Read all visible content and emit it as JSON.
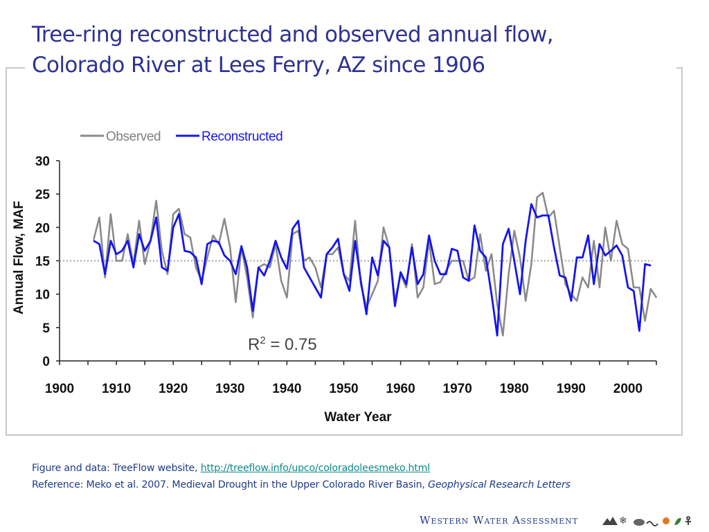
{
  "slide": {
    "title_line1": "Tree-ring reconstructed and observed annual flow,",
    "title_line2": "Colorado River at Lees Ferry, AZ since 1906"
  },
  "footer": {
    "line1_prefix": "Figure and data: TreeFlow website, ",
    "link": "http://treeflow.info/upco/coloradoleesmeko.html",
    "line2_prefix": "Reference: Meko et al.  2007.  Medieval Drought in the Upper Colorado River Basin, ",
    "journal": "Geophysical Research Letters"
  },
  "branding": {
    "text": "Western Water Assessment"
  },
  "colors": {
    "title": "#2e3192",
    "observed": "#8a8a8a",
    "reconstructed": "#1515ee",
    "mean_line": "#a0a0a0"
  },
  "chart_data": {
    "type": "line",
    "xlabel": "Water Year",
    "ylabel": "Annual Flow, MAF",
    "xlim": [
      1900,
      2005
    ],
    "ylim": [
      0,
      30
    ],
    "x_ticks": [
      "1900",
      "1910",
      "1920",
      "1930",
      "1940",
      "1950",
      "1960",
      "1970",
      "1980",
      "1990",
      "2000"
    ],
    "y_ticks": [
      "0",
      "5",
      "10",
      "15",
      "20",
      "25",
      "30"
    ],
    "legend_position": "top-left",
    "mean_line": 15,
    "annotation": {
      "prefix": "R",
      "superscript": "2",
      "suffix": " = 0.75"
    },
    "series": [
      {
        "name": "Observed",
        "x_start": 1906,
        "values": [
          18.2,
          21.5,
          12.5,
          22.0,
          15.0,
          15.0,
          19.0,
          14.5,
          21.0,
          14.5,
          18.0,
          24.0,
          16.5,
          13.0,
          22.0,
          22.8,
          19.0,
          18.5,
          14.0,
          12.0,
          15.5,
          18.8,
          17.5,
          21.3,
          17.0,
          8.8,
          17.0,
          12.5,
          6.5,
          14.0,
          14.5,
          14.0,
          17.5,
          12.0,
          9.5,
          19.0,
          19.5,
          15.0,
          15.5,
          14.0,
          11.0,
          16.0,
          16.0,
          17.0,
          13.0,
          12.0,
          21.0,
          11.5,
          8.0,
          10.0,
          12.0,
          20.0,
          17.0,
          9.0,
          13.0,
          11.0,
          17.5,
          9.5,
          11.0,
          18.0,
          11.5,
          11.8,
          13.5,
          15.0,
          15.0,
          15.0,
          12.0,
          12.5,
          19.0,
          13.5,
          16.0,
          8.5,
          3.8,
          13.0,
          19.5,
          15.5,
          9.0,
          14.5,
          24.5,
          25.2,
          21.5,
          22.5,
          17.0,
          11.5,
          10.0,
          9.0,
          12.5,
          11.0,
          18.0,
          11.0,
          20.0,
          15.0,
          21.0,
          17.5,
          16.8,
          11.0,
          11.0,
          6.0,
          10.8,
          9.5
        ]
      },
      {
        "name": "Reconstructed",
        "x_start": 1906,
        "values": [
          18.0,
          17.5,
          13.0,
          18.0,
          16.0,
          16.5,
          18.0,
          14.0,
          19.0,
          16.5,
          18.0,
          21.5,
          14.0,
          13.5,
          20.0,
          22.0,
          16.5,
          16.3,
          15.5,
          11.5,
          17.5,
          18.0,
          17.8,
          15.8,
          15.0,
          13.0,
          17.2,
          14.0,
          7.5,
          14.0,
          12.8,
          15.0,
          18.0,
          15.5,
          13.8,
          19.8,
          21.0,
          14.0,
          12.5,
          11.0,
          9.5,
          16.0,
          17.0,
          18.3,
          13.0,
          10.5,
          18.0,
          12.0,
          7.0,
          15.5,
          12.8,
          18.0,
          17.0,
          8.2,
          13.3,
          11.5,
          17.0,
          11.5,
          13.0,
          18.8,
          15.0,
          13.0,
          13.0,
          16.8,
          16.5,
          12.5,
          12.0,
          20.3,
          16.5,
          15.5,
          10.0,
          3.8,
          17.5,
          19.8,
          15.0,
          10.0,
          18.0,
          23.5,
          21.5,
          21.8,
          21.8,
          17.0,
          12.8,
          12.5,
          9.0,
          15.5,
          15.5,
          18.8,
          11.5,
          17.5,
          15.8,
          16.5,
          17.3,
          15.8,
          11.0,
          10.5,
          4.5,
          14.5,
          14.3
        ]
      }
    ]
  }
}
